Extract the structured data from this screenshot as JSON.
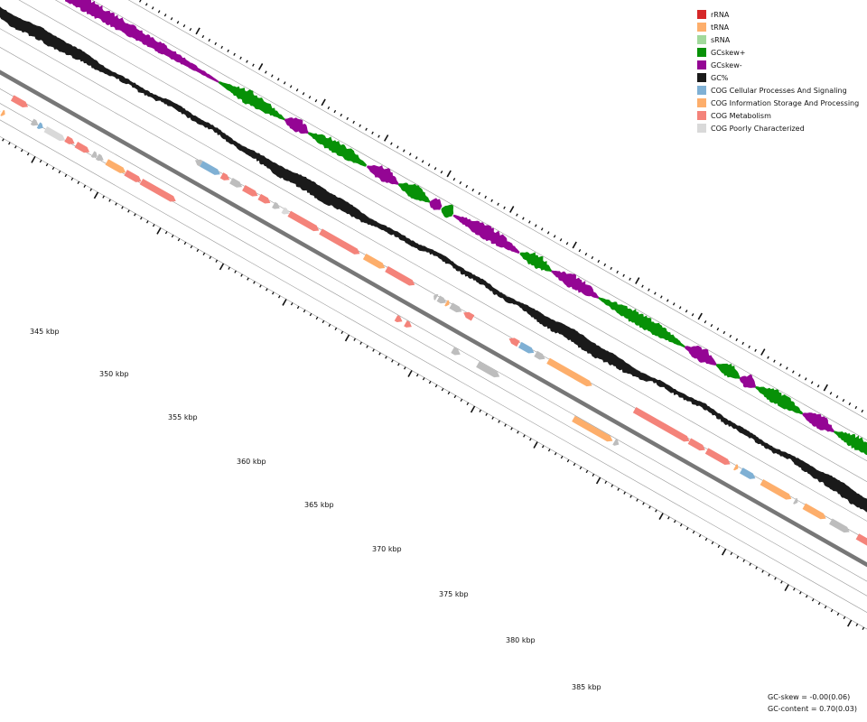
{
  "legend": [
    {
      "label": "rRNA",
      "color": "#d62728"
    },
    {
      "label": "tRNA",
      "color": "#fdae6b"
    },
    {
      "label": "sRNA",
      "color": "#a1d99b"
    },
    {
      "label": "GCskew+",
      "color": "#079107"
    },
    {
      "label": "GCskew-",
      "color": "#940594"
    },
    {
      "label": "GC%",
      "color": "#1a1a1a"
    },
    {
      "label": "COG Cellular Processes And Signaling",
      "color": "#7fb0d4"
    },
    {
      "label": "COG Information Storage And Processing",
      "color": "#fdae6b"
    },
    {
      "label": "COG Metabolism",
      "color": "#f4837a"
    },
    {
      "label": "COG Poorly Characterized",
      "color": "#d9d9d9"
    }
  ],
  "colors": {
    "track_line": "#9a9a9a",
    "backbone": "#777777",
    "gc_content": "#1a1a1a",
    "gc_skew_pos": "#079107",
    "gc_skew_neg": "#940594",
    "unclassified_gene": "#bdbdbd"
  },
  "axis": {
    "unit": "kbp",
    "tick_labels": [
      "345 kbp",
      "350 kbp",
      "355 kbp",
      "360 kbp",
      "365 kbp",
      "370 kbp",
      "375 kbp",
      "380 kbp",
      "385 kbp"
    ]
  },
  "stats": {
    "gc_skew": "GC-skew = -0.00(0.06)",
    "gc_content": "GC-content = 0.70(0.03)"
  }
}
